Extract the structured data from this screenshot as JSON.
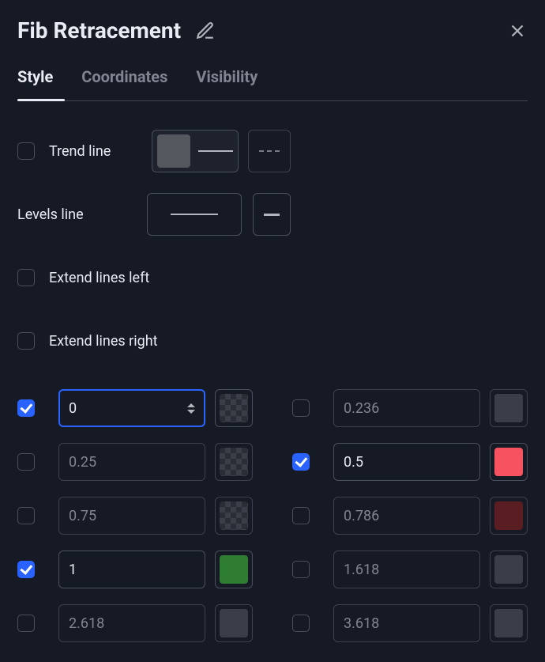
{
  "colors": {
    "background": "#161a25",
    "foreground": "#e9ecf5",
    "foreground_dim": "#808591",
    "accent": "#2962ff",
    "border": "#4a4f5c"
  },
  "title": "Fib Retracement",
  "tabs": {
    "items": [
      {
        "id": "style",
        "label": "Style",
        "active": true
      },
      {
        "id": "coordinates",
        "label": "Coordinates",
        "active": false
      },
      {
        "id": "visibility",
        "label": "Visibility",
        "active": false
      }
    ]
  },
  "options": {
    "trend_line": {
      "label": "Trend line",
      "checked": false,
      "line_style": "solid",
      "line_width": 2,
      "color_swatch": "#787b86"
    },
    "levels_line": {
      "label": "Levels line",
      "line_style": "solid",
      "line_width": 2
    },
    "extend_left": {
      "label": "Extend lines left",
      "checked": false
    },
    "extend_right": {
      "label": "Extend lines right",
      "checked": false
    }
  },
  "levels": [
    {
      "checked": true,
      "value": "0",
      "focused": true,
      "color": "transparent",
      "color_mode": "checker"
    },
    {
      "checked": false,
      "value": "0.236",
      "focused": false,
      "color": "#3a3e49",
      "color_mode": "solid"
    },
    {
      "checked": false,
      "value": "0.25",
      "focused": false,
      "color": "transparent",
      "color_mode": "checker"
    },
    {
      "checked": true,
      "value": "0.5",
      "focused": false,
      "color": "#f7525f",
      "color_mode": "solid"
    },
    {
      "checked": false,
      "value": "0.75",
      "focused": false,
      "color": "transparent",
      "color_mode": "checker"
    },
    {
      "checked": false,
      "value": "0.786",
      "focused": false,
      "color": "#5a1e22",
      "color_mode": "solid"
    },
    {
      "checked": true,
      "value": "1",
      "focused": false,
      "color": "#2e7d32",
      "color_mode": "solid"
    },
    {
      "checked": false,
      "value": "1.618",
      "focused": false,
      "color": "#3a3e49",
      "color_mode": "solid"
    },
    {
      "checked": false,
      "value": "2.618",
      "focused": false,
      "color": "#3a3e49",
      "color_mode": "solid"
    },
    {
      "checked": false,
      "value": "3.618",
      "focused": false,
      "color": "#3a3e49",
      "color_mode": "solid"
    }
  ]
}
